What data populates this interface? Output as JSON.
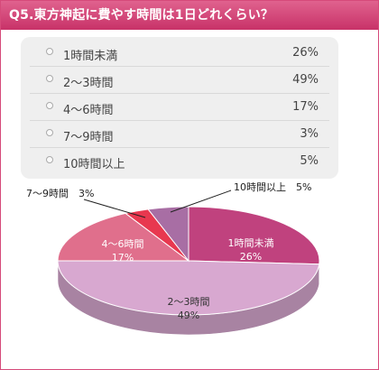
{
  "title": "Q5.東方神起に費やす時間は1日どれくらい？",
  "legend": [
    {
      "label": "1時間未満",
      "pct": "26%"
    },
    {
      "label": "2〜3時間",
      "pct": "49%"
    },
    {
      "label": "4〜6時間",
      "pct": "17%"
    },
    {
      "label": "7〜9時間",
      "pct": "3%"
    },
    {
      "label": "10時間以上",
      "pct": "5%"
    }
  ],
  "colors": [
    "#c0427e",
    "#d8a8d0",
    "#e06f8c",
    "#e8384f",
    "#a86ea4"
  ],
  "chart_data": {
    "type": "pie",
    "categories": [
      "1時間未満",
      "2〜3時間",
      "4〜6時間",
      "7〜9時間",
      "10時間以上"
    ],
    "values": [
      26,
      49,
      17,
      3,
      5
    ],
    "title": "Q5.東方神起に費やす時間は1日どれくらい？"
  }
}
